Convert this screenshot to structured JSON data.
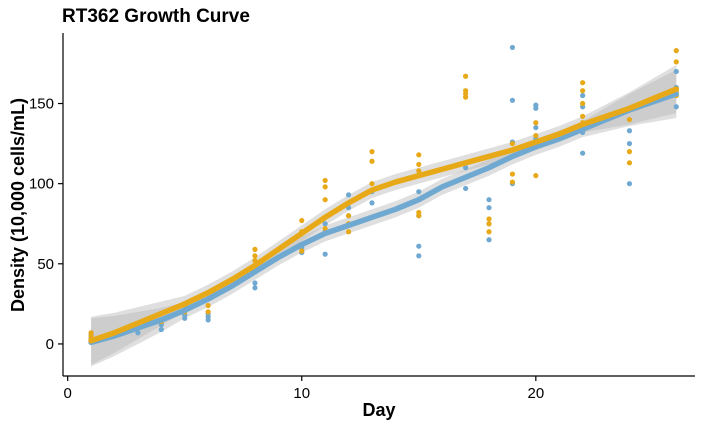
{
  "chart_data": {
    "type": "scatter",
    "title": "RT362 Growth Curve",
    "xlabel": "Day",
    "ylabel": "Density (10,000 cells/mL)",
    "xlim": [
      -0.2,
      26.8
    ],
    "ylim": [
      -20,
      194
    ],
    "xticks": [
      0,
      10,
      20
    ],
    "yticks": [
      0,
      50,
      100,
      150
    ],
    "grid": false,
    "legend": "none",
    "series": [
      {
        "color": "#6fa8d0",
        "points": [
          [
            1,
            2
          ],
          [
            1,
            4
          ],
          [
            1,
            6
          ],
          [
            3,
            7
          ],
          [
            4,
            9
          ],
          [
            4,
            12
          ],
          [
            5,
            16
          ],
          [
            5,
            18
          ],
          [
            6,
            15
          ],
          [
            6,
            17
          ],
          [
            6,
            19
          ],
          [
            8,
            35
          ],
          [
            8,
            38
          ],
          [
            8,
            45
          ],
          [
            8,
            48
          ],
          [
            10,
            57
          ],
          [
            10,
            60
          ],
          [
            10,
            62
          ],
          [
            11,
            56
          ],
          [
            11,
            70
          ],
          [
            11,
            75
          ],
          [
            12,
            80
          ],
          [
            12,
            85
          ],
          [
            12,
            93
          ],
          [
            13,
            88
          ],
          [
            13,
            95
          ],
          [
            15,
            55
          ],
          [
            15,
            61
          ],
          [
            15,
            80
          ],
          [
            15,
            95
          ],
          [
            15,
            105
          ],
          [
            17,
            97
          ],
          [
            17,
            104
          ],
          [
            17,
            110
          ],
          [
            18,
            65
          ],
          [
            18,
            75
          ],
          [
            18,
            85
          ],
          [
            18,
            90
          ],
          [
            19,
            100
          ],
          [
            19,
            126
          ],
          [
            19,
            152
          ],
          [
            19,
            185
          ],
          [
            20,
            128
          ],
          [
            20,
            135
          ],
          [
            20,
            147
          ],
          [
            20,
            149
          ],
          [
            22,
            119
          ],
          [
            22,
            132
          ],
          [
            22,
            148
          ],
          [
            22,
            155
          ],
          [
            24,
            100
          ],
          [
            24,
            125
          ],
          [
            24,
            133
          ],
          [
            26,
            148
          ],
          [
            26,
            160
          ],
          [
            26,
            170
          ]
        ],
        "trend": [
          [
            1,
            1
          ],
          [
            2,
            5
          ],
          [
            3,
            10
          ],
          [
            4,
            15
          ],
          [
            5,
            21
          ],
          [
            6,
            28
          ],
          [
            7,
            36
          ],
          [
            8,
            45
          ],
          [
            9,
            54
          ],
          [
            10,
            62
          ],
          [
            11,
            69
          ],
          [
            12,
            74
          ],
          [
            13,
            79
          ],
          [
            14,
            84
          ],
          [
            15,
            90
          ],
          [
            16,
            98
          ],
          [
            17,
            104
          ],
          [
            18,
            110
          ],
          [
            19,
            117
          ],
          [
            20,
            123
          ],
          [
            21,
            128
          ],
          [
            22,
            134
          ],
          [
            23,
            140
          ],
          [
            24,
            146
          ],
          [
            25,
            151
          ],
          [
            26,
            156
          ]
        ]
      },
      {
        "color": "#e8a918",
        "points": [
          [
            1,
            3
          ],
          [
            1,
            5
          ],
          [
            1,
            7
          ],
          [
            3,
            10
          ],
          [
            4,
            14
          ],
          [
            5,
            20
          ],
          [
            5,
            24
          ],
          [
            6,
            20
          ],
          [
            6,
            24
          ],
          [
            8,
            47
          ],
          [
            8,
            52
          ],
          [
            8,
            55
          ],
          [
            8,
            59
          ],
          [
            10,
            58
          ],
          [
            10,
            70
          ],
          [
            10,
            77
          ],
          [
            11,
            72
          ],
          [
            11,
            90
          ],
          [
            11,
            98
          ],
          [
            11,
            102
          ],
          [
            12,
            70
          ],
          [
            12,
            75
          ],
          [
            12,
            80
          ],
          [
            13,
            100
          ],
          [
            13,
            114
          ],
          [
            13,
            120
          ],
          [
            15,
            80
          ],
          [
            15,
            82
          ],
          [
            15,
            108
          ],
          [
            15,
            112
          ],
          [
            15,
            118
          ],
          [
            17,
            154
          ],
          [
            17,
            156
          ],
          [
            17,
            158
          ],
          [
            17,
            167
          ],
          [
            18,
            70
          ],
          [
            18,
            75
          ],
          [
            18,
            78
          ],
          [
            19,
            101
          ],
          [
            19,
            106
          ],
          [
            19,
            125
          ],
          [
            20,
            105
          ],
          [
            20,
            130
          ],
          [
            20,
            138
          ],
          [
            22,
            138
          ],
          [
            22,
            142
          ],
          [
            22,
            150
          ],
          [
            22,
            158
          ],
          [
            22,
            163
          ],
          [
            24,
            113
          ],
          [
            24,
            120
          ],
          [
            24,
            140
          ],
          [
            26,
            155
          ],
          [
            26,
            158
          ],
          [
            26,
            176
          ],
          [
            26,
            183
          ]
        ],
        "trend": [
          [
            1,
            2
          ],
          [
            2,
            7
          ],
          [
            3,
            13
          ],
          [
            4,
            19
          ],
          [
            5,
            25
          ],
          [
            6,
            32
          ],
          [
            7,
            40
          ],
          [
            8,
            49
          ],
          [
            9,
            59
          ],
          [
            10,
            69
          ],
          [
            11,
            79
          ],
          [
            12,
            88
          ],
          [
            13,
            96
          ],
          [
            14,
            101
          ],
          [
            15,
            105
          ],
          [
            16,
            109
          ],
          [
            17,
            113
          ],
          [
            18,
            117
          ],
          [
            19,
            121
          ],
          [
            20,
            126
          ],
          [
            21,
            131
          ],
          [
            22,
            137
          ],
          [
            23,
            142
          ],
          [
            24,
            147
          ],
          [
            25,
            153
          ],
          [
            26,
            159
          ]
        ]
      }
    ]
  },
  "colors": {
    "band": "#b8b8b8",
    "axis": "#000000"
  }
}
